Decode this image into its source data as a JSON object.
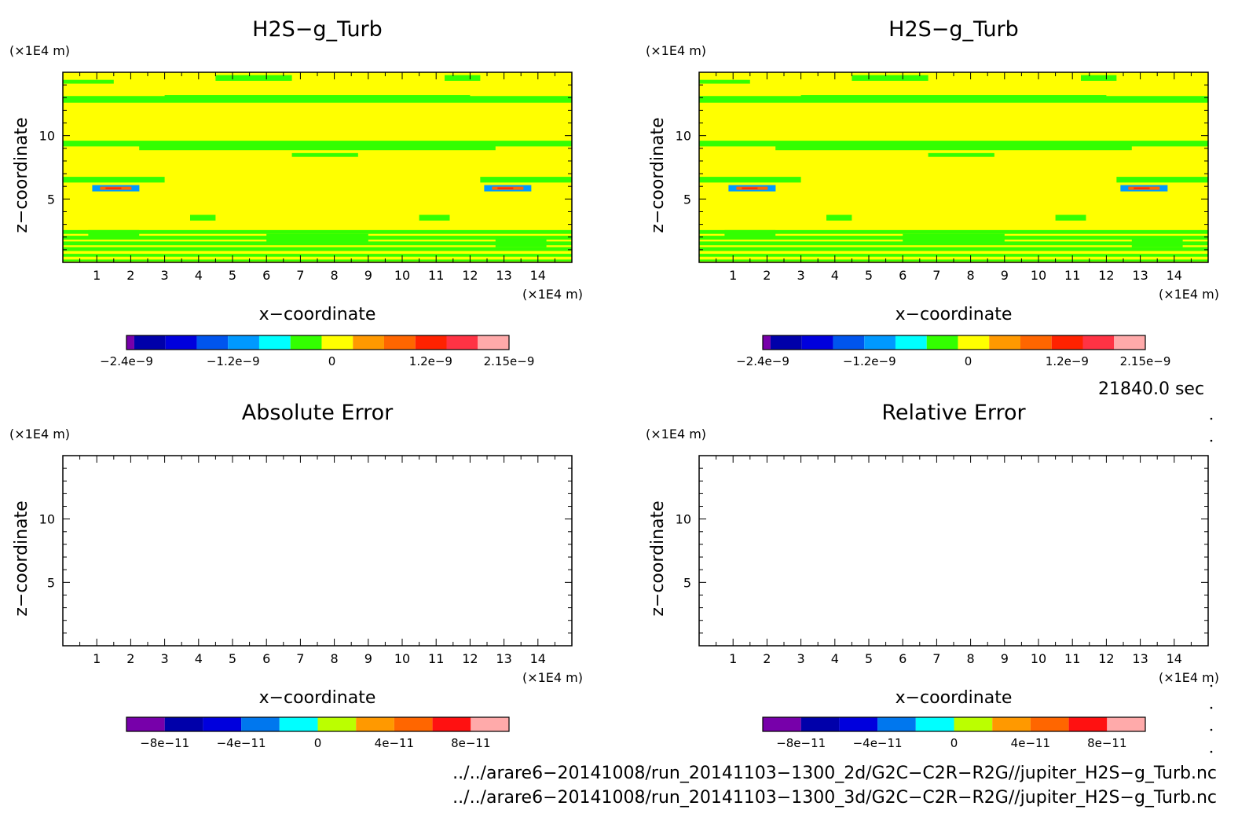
{
  "chart_data": [
    {
      "type": "heatmap",
      "title": "H2S−g_Turb",
      "xlabel": "x−coordinate",
      "ylabel": "z−coordinate",
      "x_unit": "(×1E4 m)",
      "y_unit": "(×1E4 m)",
      "xlim": [
        0,
        15
      ],
      "ylim": [
        0,
        15
      ],
      "x_ticks": [
        "1",
        "2",
        "3",
        "4",
        "5",
        "6",
        "7",
        "8",
        "9",
        "10",
        "11",
        "12",
        "13",
        "14"
      ],
      "y_ticks": [
        "5",
        "10"
      ],
      "field": "contour",
      "background_color": "#ffff00",
      "band_color": "#33ff00",
      "colorbar": {
        "colors": [
          "#7700aa",
          "#0000aa",
          "#0000dd",
          "#0055ee",
          "#0099ff",
          "#00ffff",
          "#33ff00",
          "#ffff00",
          "#ff9900",
          "#ff6600",
          "#ff2200",
          "#ff3344",
          "#ffaaaa"
        ],
        "tick_labels": [
          "−2.4e−9",
          "−1.2e−9",
          "0",
          "1.2e−9",
          "2.15e−9"
        ],
        "range": [
          -2.4e-09,
          2.15e-09
        ]
      }
    },
    {
      "type": "heatmap",
      "title": "H2S−g_Turb",
      "xlabel": "x−coordinate",
      "ylabel": "z−coordinate",
      "x_unit": "(×1E4 m)",
      "y_unit": "(×1E4 m)",
      "xlim": [
        0,
        15
      ],
      "ylim": [
        0,
        15
      ],
      "x_ticks": [
        "1",
        "2",
        "3",
        "4",
        "5",
        "6",
        "7",
        "8",
        "9",
        "10",
        "11",
        "12",
        "13",
        "14"
      ],
      "y_ticks": [
        "5",
        "10"
      ],
      "field": "contour",
      "background_color": "#ffff00",
      "band_color": "#33ff00",
      "colorbar": {
        "colors": [
          "#7700aa",
          "#0000aa",
          "#0000dd",
          "#0055ee",
          "#0099ff",
          "#00ffff",
          "#33ff00",
          "#ffff00",
          "#ff9900",
          "#ff6600",
          "#ff2200",
          "#ff3344",
          "#ffaaaa"
        ],
        "tick_labels": [
          "−2.4e−9",
          "−1.2e−9",
          "0",
          "1.2e−9",
          "2.15e−9"
        ],
        "range": [
          -2.4e-09,
          2.15e-09
        ]
      }
    },
    {
      "type": "heatmap",
      "title": "Absolute Error",
      "xlabel": "x−coordinate",
      "ylabel": "z−coordinate",
      "x_unit": "(×1E4 m)",
      "y_unit": "(×1E4 m)",
      "xlim": [
        0,
        15
      ],
      "ylim": [
        0,
        15
      ],
      "x_ticks": [
        "1",
        "2",
        "3",
        "4",
        "5",
        "6",
        "7",
        "8",
        "9",
        "10",
        "11",
        "12",
        "13",
        "14"
      ],
      "y_ticks": [
        "5",
        "10"
      ],
      "field": "empty",
      "background_color": "#ffffff",
      "colorbar": {
        "colors": [
          "#7700aa",
          "#0000aa",
          "#0000dd",
          "#0077ee",
          "#00ffff",
          "#bbff00",
          "#ff9900",
          "#ff6600",
          "#ff1111",
          "#ffaaaa"
        ],
        "tick_labels": [
          "−8e−11",
          "−4e−11",
          "0",
          "4e−11",
          "8e−11"
        ],
        "range": [
          -1e-10,
          1e-10
        ]
      }
    },
    {
      "type": "heatmap",
      "title": "Relative Error",
      "xlabel": "x−coordinate",
      "ylabel": "z−coordinate",
      "x_unit": "(×1E4 m)",
      "y_unit": "(×1E4 m)",
      "xlim": [
        0,
        15
      ],
      "ylim": [
        0,
        15
      ],
      "x_ticks": [
        "1",
        "2",
        "3",
        "4",
        "5",
        "6",
        "7",
        "8",
        "9",
        "10",
        "11",
        "12",
        "13",
        "14"
      ],
      "y_ticks": [
        "5",
        "10"
      ],
      "field": "empty",
      "background_color": "#ffffff",
      "colorbar": {
        "colors": [
          "#7700aa",
          "#0000aa",
          "#0000dd",
          "#0077ee",
          "#00ffff",
          "#bbff00",
          "#ff9900",
          "#ff6600",
          "#ff1111",
          "#ffaaaa"
        ],
        "tick_labels": [
          "−8e−11",
          "−4e−11",
          "0",
          "4e−11",
          "8e−11"
        ],
        "range": [
          -1e-10,
          1e-10
        ]
      }
    }
  ],
  "time_label": "21840.0 sec",
  "footer": {
    "line1": "../../arare6−20141008/run_20141103−1300_2d/G2C−C2R−R2G//jupiter_H2S−g_Turb.nc",
    "line2": "../../arare6−20141008/run_20141103−1300_3d/G2C−C2R−R2G//jupiter_H2S−g_Turb.nc"
  }
}
